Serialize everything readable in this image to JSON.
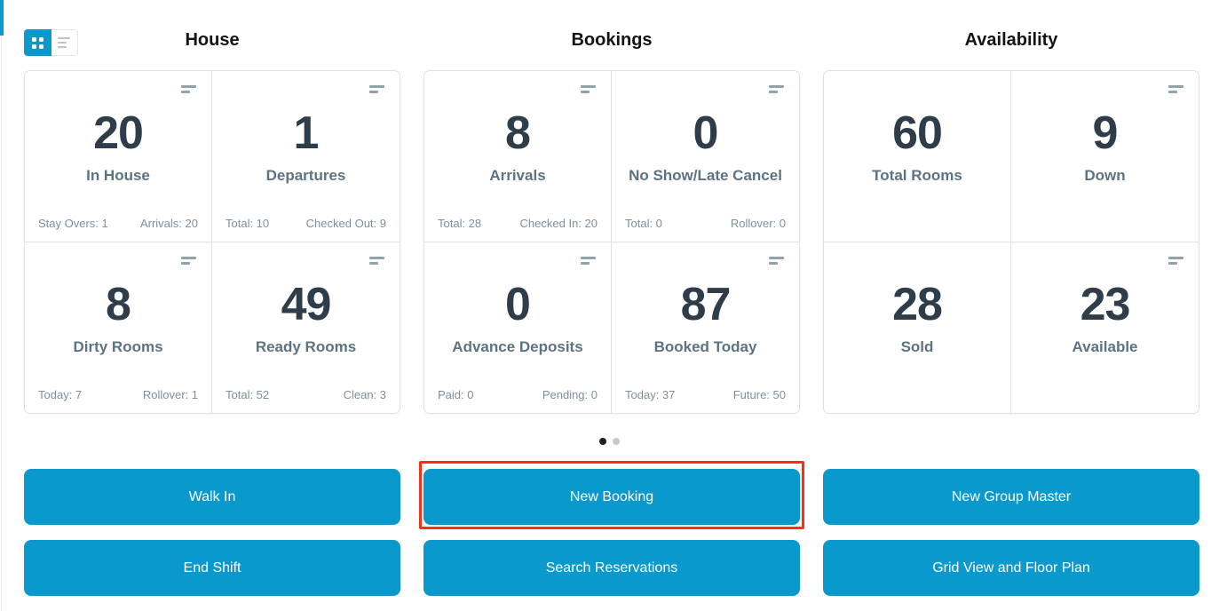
{
  "colors": {
    "accent": "#0999cc",
    "number": "#2e3d49",
    "label": "#5d7381",
    "stat": "#7e909d",
    "border": "#dee2e6",
    "highlight": "#f5311d"
  },
  "view_toggle": {
    "grid_icon": "grid-view-icon",
    "list_icon": "list-view-icon"
  },
  "sections": [
    {
      "title": "House",
      "cards": [
        {
          "value": "20",
          "label": "In House",
          "stat_left": "Stay Overs: 1",
          "stat_right": "Arrivals: 20"
        },
        {
          "value": "1",
          "label": "Departures",
          "stat_left": "Total: 10",
          "stat_right": "Checked Out: 9"
        },
        {
          "value": "8",
          "label": "Dirty Rooms",
          "stat_left": "Today: 7",
          "stat_right": "Rollover: 1"
        },
        {
          "value": "49",
          "label": "Ready Rooms",
          "stat_left": "Total: 52",
          "stat_right": "Clean: 3"
        }
      ]
    },
    {
      "title": "Bookings",
      "cards": [
        {
          "value": "8",
          "label": "Arrivals",
          "stat_left": "Total: 28",
          "stat_right": "Checked In: 20"
        },
        {
          "value": "0",
          "label": "No Show/Late Cancel",
          "stat_left": "Total: 0",
          "stat_right": "Rollover: 0"
        },
        {
          "value": "0",
          "label": "Advance Deposits",
          "stat_left": "Paid: 0",
          "stat_right": "Pending: 0"
        },
        {
          "value": "87",
          "label": "Booked Today",
          "stat_left": "Today: 37",
          "stat_right": "Future: 50"
        }
      ]
    },
    {
      "title": "Availability",
      "cards": [
        {
          "value": "60",
          "label": "Total Rooms"
        },
        {
          "value": "9",
          "label": "Down"
        },
        {
          "value": "28",
          "label": "Sold"
        },
        {
          "value": "23",
          "label": "Available"
        }
      ]
    }
  ],
  "carousel": {
    "page_count": 2,
    "active_page": 1
  },
  "actions": {
    "walk_in": "Walk In",
    "new_booking": "New Booking",
    "new_group_master": "New Group Master",
    "end_shift": "End Shift",
    "search_reservations": "Search Reservations",
    "grid_view_floor_plan": "Grid View and Floor Plan",
    "highlighted_action": "New Booking"
  }
}
